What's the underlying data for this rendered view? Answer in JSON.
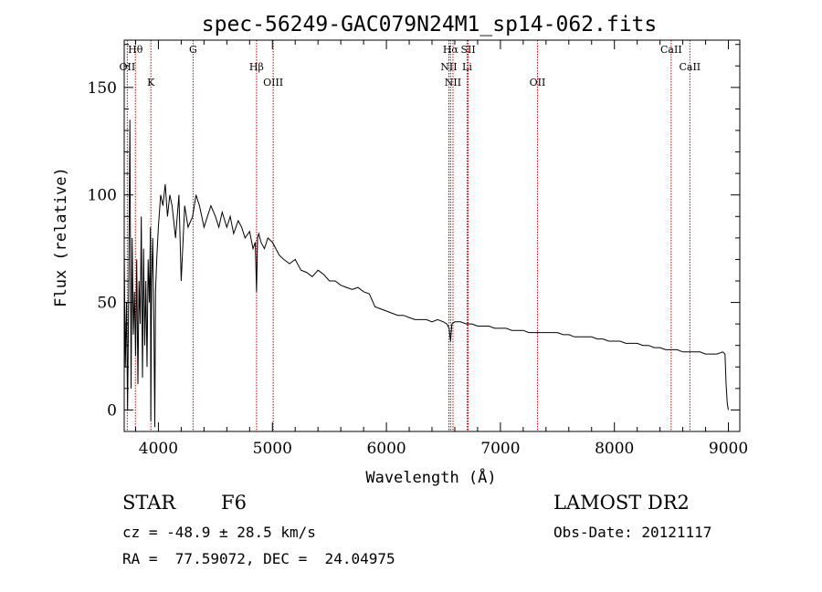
{
  "chart_data": {
    "type": "line",
    "title": "spec-56249-GAC079N24M1_sp14-062.fits",
    "xlabel": "Wavelength (Å)",
    "ylabel": "Flux (relative)",
    "xlim": [
      3700,
      9100
    ],
    "ylim": [
      -10,
      172
    ],
    "x_ticks": [
      4000,
      5000,
      6000,
      7000,
      8000,
      9000
    ],
    "y_ticks": [
      0,
      50,
      100,
      150
    ],
    "grid": false,
    "series": [
      {
        "x": [
          3700,
          3710,
          3720,
          3730,
          3740,
          3750,
          3760,
          3770,
          3780,
          3790,
          3800,
          3810,
          3820,
          3830,
          3840,
          3850,
          3860,
          3870,
          3880,
          3890,
          3900,
          3910,
          3920,
          3930,
          3933,
          3940,
          3950,
          3960,
          3968,
          3975,
          3985,
          4000,
          4020,
          4040,
          4060,
          4080,
          4100,
          4120,
          4150,
          4180,
          4200,
          4230,
          4260,
          4300,
          4330,
          4360,
          4400,
          4430,
          4460,
          4500,
          4530,
          4560,
          4600,
          4630,
          4660,
          4700,
          4730,
          4760,
          4800,
          4830,
          4850,
          4861,
          4870,
          4880,
          4900,
          4930,
          4960,
          5000,
          5030,
          5060,
          5100,
          5150,
          5200,
          5250,
          5300,
          5350,
          5400,
          5450,
          5500,
          5550,
          5600,
          5650,
          5700,
          5750,
          5800,
          5850,
          5900,
          5950,
          6000,
          6050,
          6100,
          6150,
          6200,
          6250,
          6300,
          6350,
          6400,
          6450,
          6500,
          6530,
          6550,
          6563,
          6575,
          6600,
          6650,
          6700,
          6750,
          6800,
          6850,
          6900,
          6950,
          7000,
          7050,
          7100,
          7150,
          7200,
          7250,
          7300,
          7350,
          7400,
          7450,
          7500,
          7550,
          7600,
          7650,
          7700,
          7750,
          7800,
          7850,
          7900,
          7950,
          8000,
          8050,
          8100,
          8150,
          8200,
          8250,
          8300,
          8350,
          8400,
          8450,
          8500,
          8550,
          8600,
          8650,
          8700,
          8750,
          8800,
          8850,
          8900,
          8950,
          8970,
          8980,
          8990,
          9000
        ],
        "y": [
          75,
          20,
          50,
          0,
          60,
          135,
          10,
          80,
          35,
          55,
          25,
          70,
          12,
          60,
          40,
          90,
          15,
          75,
          30,
          60,
          20,
          70,
          50,
          85,
          -5,
          60,
          80,
          40,
          -8,
          55,
          70,
          85,
          100,
          95,
          105,
          90,
          100,
          95,
          80,
          100,
          60,
          95,
          85,
          90,
          100,
          95,
          85,
          90,
          95,
          90,
          85,
          92,
          85,
          90,
          82,
          88,
          85,
          80,
          83,
          75,
          78,
          55,
          80,
          82,
          78,
          75,
          80,
          78,
          75,
          72,
          70,
          68,
          70,
          65,
          64,
          62,
          65,
          63,
          60,
          60,
          58,
          57,
          56,
          57,
          55,
          54,
          48,
          47,
          46,
          45,
          44,
          44,
          43,
          42,
          42,
          42,
          41,
          42,
          41,
          40,
          38,
          32,
          40,
          41,
          41,
          40,
          40,
          39,
          39,
          39,
          38,
          38,
          38,
          37,
          37,
          37,
          36,
          36,
          36,
          36,
          36,
          36,
          35,
          35,
          34,
          34,
          34,
          34,
          33,
          33,
          32,
          32,
          32,
          31,
          31,
          31,
          30,
          30,
          29,
          29,
          28,
          28,
          28,
          27,
          27,
          27,
          27,
          26,
          26,
          26,
          27,
          26,
          12,
          3,
          0
        ]
      }
    ],
    "lines": [
      {
        "label": "Hθ",
        "wave": 3798
      },
      {
        "label": "OII",
        "wave": 3727
      },
      {
        "label": "K",
        "wave": 3934
      },
      {
        "label": "G",
        "wave": 4304
      },
      {
        "label": "Hβ",
        "wave": 4861
      },
      {
        "label": "OIII",
        "wave": 5007
      },
      {
        "label": "Hα",
        "wave": 6563
      },
      {
        "label": "NII",
        "wave": 6548
      },
      {
        "label": "NII",
        "wave": 6584
      },
      {
        "label": "SII",
        "wave": 6717
      },
      {
        "label": "Li",
        "wave": 6708
      },
      {
        "label": "OII",
        "wave": 7325
      },
      {
        "label": "CaII",
        "wave": 8498
      },
      {
        "label": "CaII",
        "wave": 8662
      }
    ]
  },
  "info": {
    "object_class": "STAR",
    "subclass": "F6",
    "survey": "LAMOST DR2",
    "cz": "cz = -48.9 ± 28.5 km/s",
    "obs_date": "Obs-Date: 20121117",
    "coords": "RA =  77.59072, DEC =  24.04975"
  }
}
